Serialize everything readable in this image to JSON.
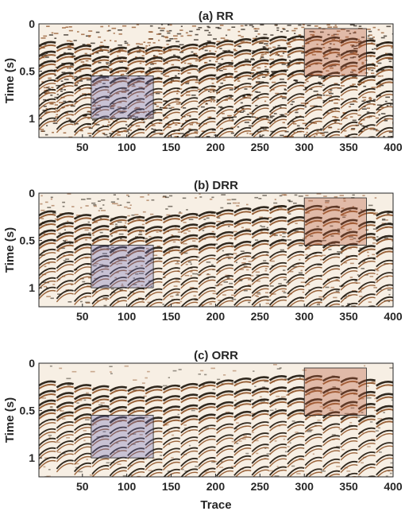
{
  "figure": {
    "xlabel": "Trace"
  },
  "colors": {
    "seismic_dark": "#1a1208",
    "seismic_brown": "#8a4a1c",
    "seismic_light": "#f7efe4",
    "highlight_blue": "#6f6fb8",
    "highlight_red": "#b85a3a",
    "axis": "#262626"
  },
  "chart_data": [
    {
      "type": "heatmap",
      "title": "(a) RR",
      "ylabel": "Time (s)",
      "xlabel": "",
      "xlim": [
        1,
        400
      ],
      "ylim": [
        0,
        1.2
      ],
      "xticks": [
        50,
        100,
        150,
        200,
        250,
        300,
        350,
        400
      ],
      "yticks": [
        0,
        0.5,
        1
      ],
      "yticklabels": [
        "0",
        "0.5",
        "1"
      ],
      "noise_level": 0.85,
      "highlight_boxes": [
        {
          "color": "blue",
          "x": [
            60,
            130
          ],
          "y": [
            0.55,
            1.0
          ]
        },
        {
          "color": "red",
          "x": [
            300,
            370
          ],
          "y": [
            0.05,
            0.55
          ]
        }
      ]
    },
    {
      "type": "heatmap",
      "title": "(b) DRR",
      "ylabel": "Time (s)",
      "xlabel": "",
      "xlim": [
        1,
        400
      ],
      "ylim": [
        0,
        1.2
      ],
      "xticks": [
        50,
        100,
        150,
        200,
        250,
        300,
        350,
        400
      ],
      "yticks": [
        0,
        0.5,
        1
      ],
      "yticklabels": [
        "0",
        "0.5",
        "1"
      ],
      "noise_level": 0.45,
      "highlight_boxes": [
        {
          "color": "blue",
          "x": [
            60,
            130
          ],
          "y": [
            0.55,
            1.0
          ]
        },
        {
          "color": "red",
          "x": [
            300,
            370
          ],
          "y": [
            0.05,
            0.55
          ]
        }
      ]
    },
    {
      "type": "heatmap",
      "title": "(c) ORR",
      "ylabel": "Time (s)",
      "xlabel": "Trace",
      "xlim": [
        1,
        400
      ],
      "ylim": [
        0,
        1.2
      ],
      "xticks": [
        50,
        100,
        150,
        200,
        250,
        300,
        350,
        400
      ],
      "yticks": [
        0,
        0.5,
        1
      ],
      "yticklabels": [
        "0",
        "0.5",
        "1"
      ],
      "noise_level": 0.2,
      "highlight_boxes": [
        {
          "color": "blue",
          "x": [
            60,
            130
          ],
          "y": [
            0.55,
            1.0
          ]
        },
        {
          "color": "red",
          "x": [
            300,
            370
          ],
          "y": [
            0.05,
            0.55
          ]
        }
      ]
    }
  ]
}
